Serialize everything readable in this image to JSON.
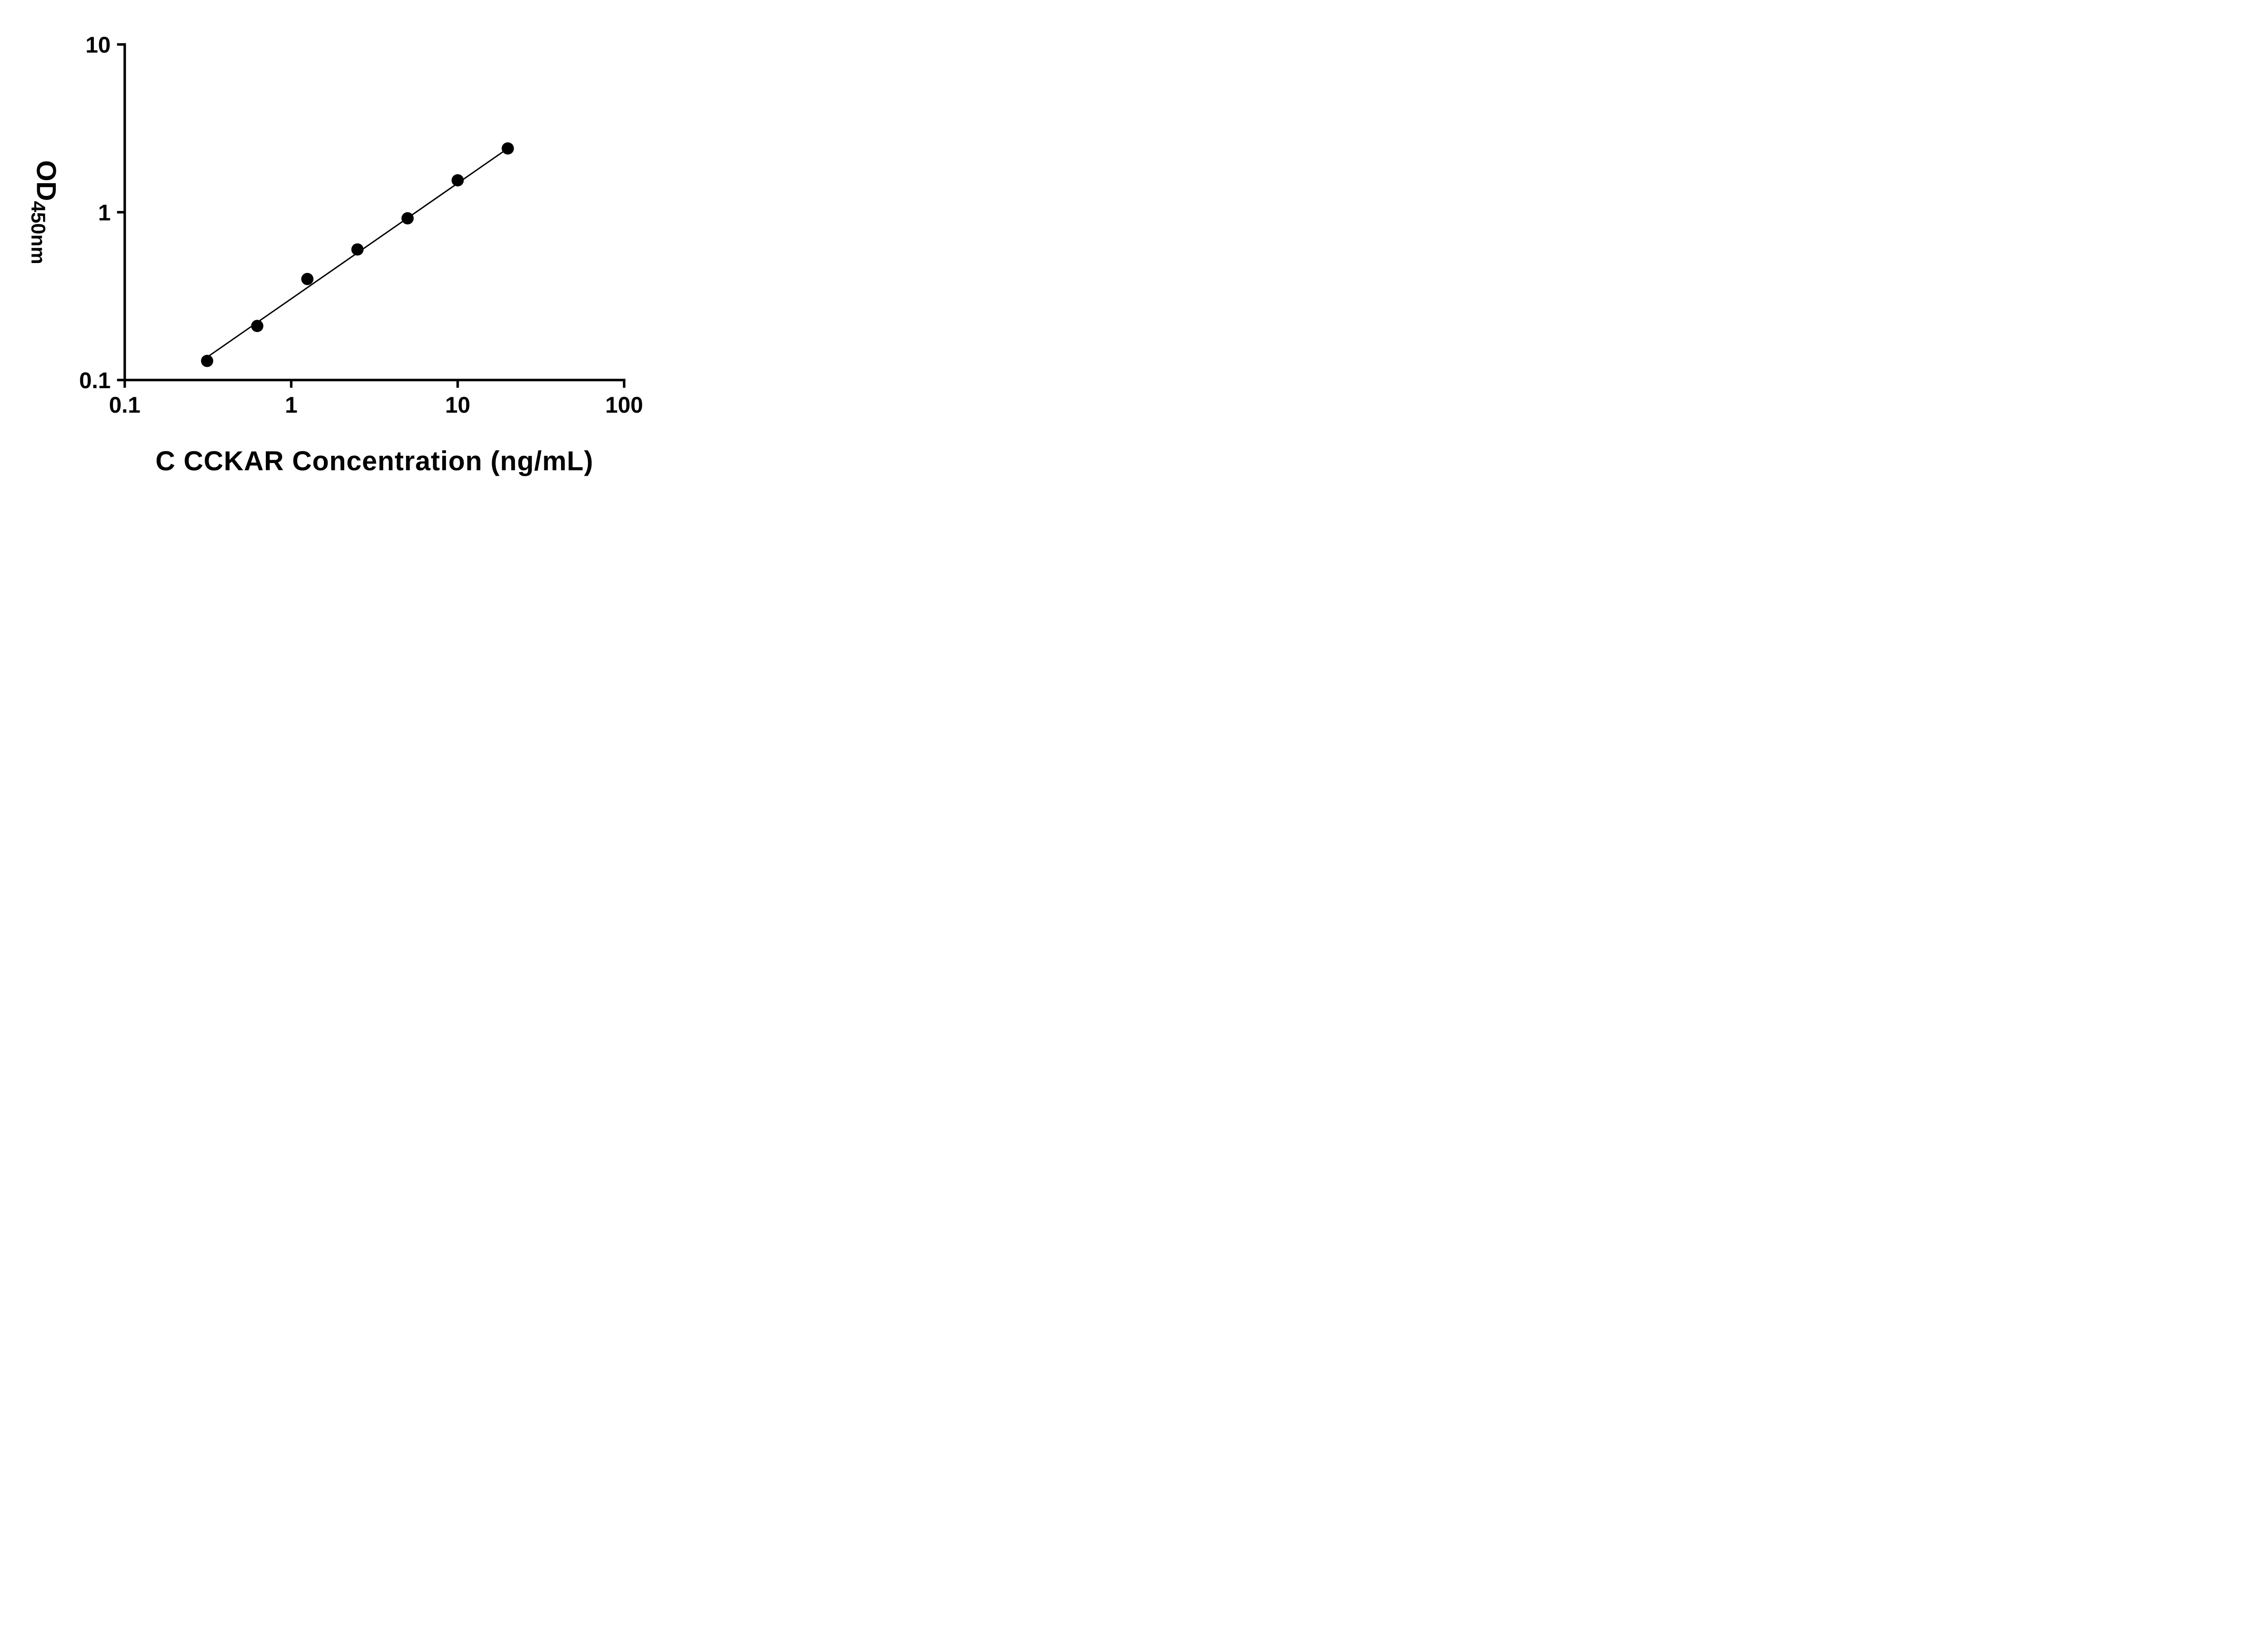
{
  "figure": {
    "background": "#ffffff"
  },
  "chart_data": {
    "type": "scatter",
    "title": "",
    "xlabel": "C CCKAR Concentration (ng/mL)",
    "ylabel": "OD450nm",
    "ylabel_main": "OD",
    "ylabel_sub": "450nm",
    "xscale": "log",
    "yscale": "log",
    "xlim": [
      0.1,
      100
    ],
    "ylim": [
      0.1,
      10
    ],
    "x_ticks": [
      0.1,
      1,
      10,
      100
    ],
    "x_tick_labels": [
      "0.1",
      "1",
      "10",
      "100"
    ],
    "y_ticks": [
      0.1,
      1,
      10
    ],
    "y_tick_labels": [
      "0.1",
      "1",
      "10"
    ],
    "grid": false,
    "legend": false,
    "series": [
      {
        "name": "standard-curve-points",
        "marker": "circle",
        "color": "#000000",
        "x": [
          0.3125,
          0.625,
          1.25,
          2.5,
          5,
          10,
          20
        ],
        "y": [
          0.13,
          0.21,
          0.4,
          0.6,
          0.92,
          1.55,
          2.4
        ]
      }
    ],
    "trendline": {
      "x": [
        0.3,
        20
      ],
      "y": [
        0.133,
        2.4
      ],
      "color": "#000000"
    },
    "colors": {
      "axis": "#000000",
      "marker": "#000000",
      "line": "#000000",
      "background": "#ffffff"
    }
  }
}
